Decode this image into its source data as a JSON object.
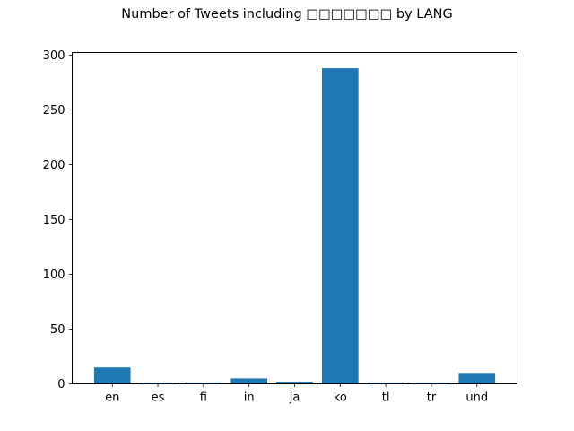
{
  "chart_data": {
    "type": "bar",
    "title": "Number of Tweets including □□□□□□□ by LANG",
    "xlabel": "",
    "ylabel": "",
    "categories": [
      "en",
      "es",
      "fi",
      "in",
      "ja",
      "ko",
      "tl",
      "tr",
      "und"
    ],
    "values": [
      15,
      1,
      1,
      5,
      2,
      288,
      1,
      1,
      10
    ],
    "ylim": [
      0,
      302.4
    ],
    "yticks": [
      0,
      50,
      100,
      150,
      200,
      250,
      300
    ],
    "grid": false,
    "legend": "none",
    "bar_color": "#1f77b4"
  }
}
